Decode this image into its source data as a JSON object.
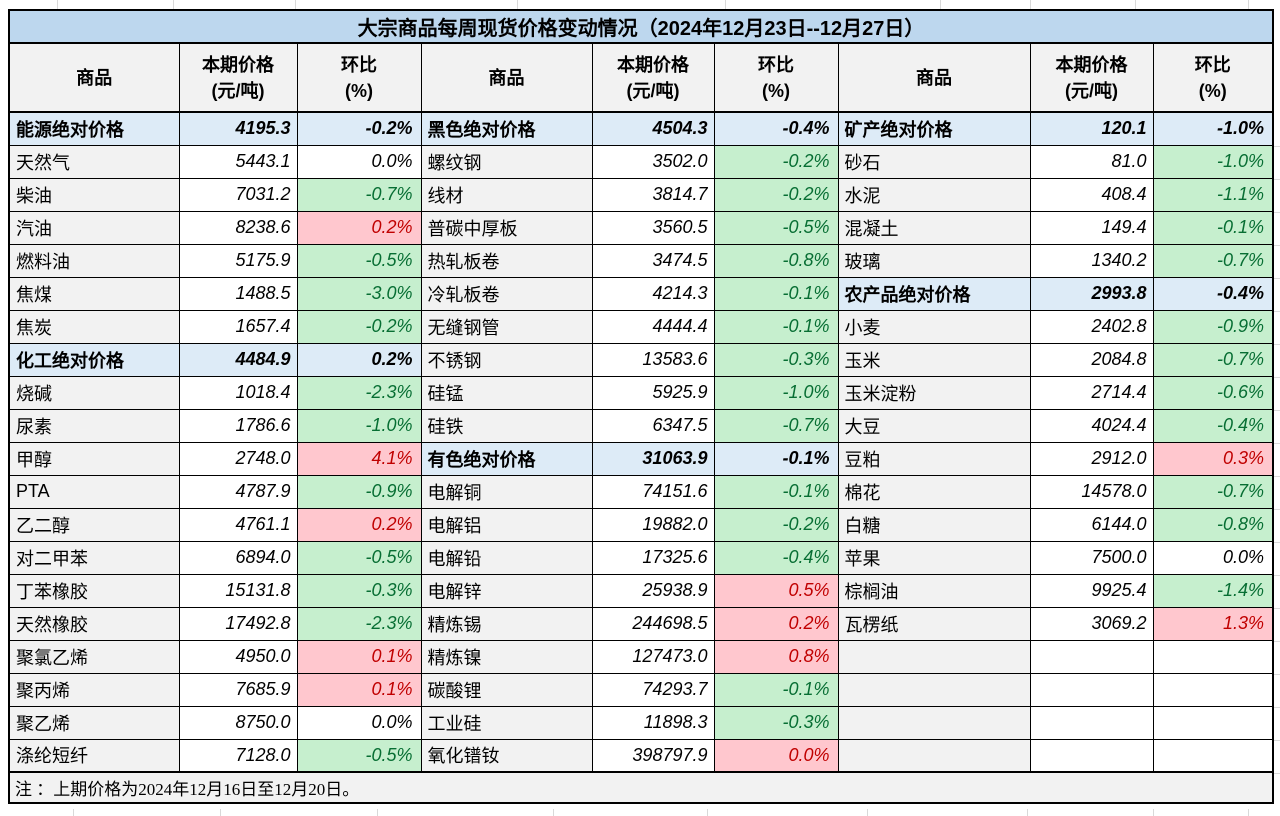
{
  "title": "大宗商品每周现货价格变动情况（2024年12月23日--12月27日）",
  "note": "注 ：上期价格为2024年12月16日至12月20日。",
  "column_headers": {
    "commodity": "商品",
    "price_line1": "本期价格",
    "price_line2": "(元/吨)",
    "pct_line1": "环比",
    "pct_line2": "(%)"
  },
  "colors": {
    "title_bg": "#BDD7EE",
    "section_bg": "#DDEBF7",
    "name_bg": "#F2F2F2",
    "header_bg": "#F2F2F2",
    "down_bg": "#C6EFCE",
    "down_text": "#076E33",
    "up_bg": "#FFC7CE",
    "up_text": "#C00000",
    "grid": "#000000",
    "faint_grid": "#D9D9D9"
  },
  "groups": [
    {
      "rows": [
        {
          "name": "能源绝对价格",
          "price": "4195.3",
          "pct": "-0.2%",
          "move": "section"
        },
        {
          "name": "天然气",
          "price": "5443.1",
          "pct": "0.0%",
          "move": "flat"
        },
        {
          "name": "柴油",
          "price": "7031.2",
          "pct": "-0.7%",
          "move": "down"
        },
        {
          "name": "汽油",
          "price": "8238.6",
          "pct": "0.2%",
          "move": "up"
        },
        {
          "name": "燃料油",
          "price": "5175.9",
          "pct": "-0.5%",
          "move": "down"
        },
        {
          "name": "焦煤",
          "price": "1488.5",
          "pct": "-3.0%",
          "move": "down"
        },
        {
          "name": "焦炭",
          "price": "1657.4",
          "pct": "-0.2%",
          "move": "down"
        },
        {
          "name": "化工绝对价格",
          "price": "4484.9",
          "pct": "0.2%",
          "move": "section"
        },
        {
          "name": "烧碱",
          "price": "1018.4",
          "pct": "-2.3%",
          "move": "down"
        },
        {
          "name": "尿素",
          "price": "1786.6",
          "pct": "-1.0%",
          "move": "down"
        },
        {
          "name": "甲醇",
          "price": "2748.0",
          "pct": "4.1%",
          "move": "up"
        },
        {
          "name": "PTA",
          "price": "4787.9",
          "pct": "-0.9%",
          "move": "down"
        },
        {
          "name": "乙二醇",
          "price": "4761.1",
          "pct": "0.2%",
          "move": "up"
        },
        {
          "name": "对二甲苯",
          "price": "6894.0",
          "pct": "-0.5%",
          "move": "down"
        },
        {
          "name": "丁苯橡胶",
          "price": "15131.8",
          "pct": "-0.3%",
          "move": "down"
        },
        {
          "name": "天然橡胶",
          "price": "17492.8",
          "pct": "-2.3%",
          "move": "down"
        },
        {
          "name": "聚氯乙烯",
          "price": "4950.0",
          "pct": "0.1%",
          "move": "up"
        },
        {
          "name": "聚丙烯",
          "price": "7685.9",
          "pct": "0.1%",
          "move": "up"
        },
        {
          "name": "聚乙烯",
          "price": "8750.0",
          "pct": "0.0%",
          "move": "flat"
        },
        {
          "name": "涤纶短纤",
          "price": "7128.0",
          "pct": "-0.5%",
          "move": "down"
        }
      ]
    },
    {
      "rows": [
        {
          "name": "黑色绝对价格",
          "price": "4504.3",
          "pct": "-0.4%",
          "move": "section"
        },
        {
          "name": "螺纹钢",
          "price": "3502.0",
          "pct": "-0.2%",
          "move": "down"
        },
        {
          "name": "线材",
          "price": "3814.7",
          "pct": "-0.2%",
          "move": "down"
        },
        {
          "name": "普碳中厚板",
          "price": "3560.5",
          "pct": "-0.5%",
          "move": "down"
        },
        {
          "name": "热轧板卷",
          "price": "3474.5",
          "pct": "-0.8%",
          "move": "down"
        },
        {
          "name": "冷轧板卷",
          "price": "4214.3",
          "pct": "-0.1%",
          "move": "down"
        },
        {
          "name": "无缝钢管",
          "price": "4444.4",
          "pct": "-0.1%",
          "move": "down"
        },
        {
          "name": "不锈钢",
          "price": "13583.6",
          "pct": "-0.3%",
          "move": "down"
        },
        {
          "name": "硅锰",
          "price": "5925.9",
          "pct": "-1.0%",
          "move": "down"
        },
        {
          "name": "硅铁",
          "price": "6347.5",
          "pct": "-0.7%",
          "move": "down"
        },
        {
          "name": "有色绝对价格",
          "price": "31063.9",
          "pct": "-0.1%",
          "move": "section"
        },
        {
          "name": "电解铜",
          "price": "74151.6",
          "pct": "-0.1%",
          "move": "down"
        },
        {
          "name": "电解铝",
          "price": "19882.0",
          "pct": "-0.2%",
          "move": "down"
        },
        {
          "name": "电解铅",
          "price": "17325.6",
          "pct": "-0.4%",
          "move": "down"
        },
        {
          "name": "电解锌",
          "price": "25938.9",
          "pct": "0.5%",
          "move": "up"
        },
        {
          "name": "精炼锡",
          "price": "244698.5",
          "pct": "0.2%",
          "move": "up"
        },
        {
          "name": "精炼镍",
          "price": "127473.0",
          "pct": "0.8%",
          "move": "up"
        },
        {
          "name": "碳酸锂",
          "price": "74293.7",
          "pct": "-0.1%",
          "move": "down"
        },
        {
          "name": "工业硅",
          "price": "11898.3",
          "pct": "-0.3%",
          "move": "down"
        },
        {
          "name": "氧化镨钕",
          "price": "398797.9",
          "pct": "0.0%",
          "move": "up"
        }
      ]
    },
    {
      "rows": [
        {
          "name": "矿产绝对价格",
          "price": "120.1",
          "pct": "-1.0%",
          "move": "section"
        },
        {
          "name": "砂石",
          "price": "81.0",
          "pct": "-1.0%",
          "move": "down"
        },
        {
          "name": "水泥",
          "price": "408.4",
          "pct": "-1.1%",
          "move": "down"
        },
        {
          "name": "混凝土",
          "price": "149.4",
          "pct": "-0.1%",
          "move": "down"
        },
        {
          "name": "玻璃",
          "price": "1340.2",
          "pct": "-0.7%",
          "move": "down"
        },
        {
          "name": "农产品绝对价格",
          "price": "2993.8",
          "pct": "-0.4%",
          "move": "section"
        },
        {
          "name": "小麦",
          "price": "2402.8",
          "pct": "-0.9%",
          "move": "down"
        },
        {
          "name": "玉米",
          "price": "2084.8",
          "pct": "-0.7%",
          "move": "down"
        },
        {
          "name": "玉米淀粉",
          "price": "2714.4",
          "pct": "-0.6%",
          "move": "down"
        },
        {
          "name": "大豆",
          "price": "4024.4",
          "pct": "-0.4%",
          "move": "down"
        },
        {
          "name": "豆粕",
          "price": "2912.0",
          "pct": "0.3%",
          "move": "up"
        },
        {
          "name": "棉花",
          "price": "14578.0",
          "pct": "-0.7%",
          "move": "down"
        },
        {
          "name": "白糖",
          "price": "6144.0",
          "pct": "-0.8%",
          "move": "down"
        },
        {
          "name": "苹果",
          "price": "7500.0",
          "pct": "0.0%",
          "move": "flat"
        },
        {
          "name": "棕榈油",
          "price": "9925.4",
          "pct": "-1.4%",
          "move": "down"
        },
        {
          "name": "瓦楞纸",
          "price": "3069.2",
          "pct": "1.3%",
          "move": "up"
        },
        {
          "name": "",
          "price": "",
          "pct": "",
          "move": "empty"
        },
        {
          "name": "",
          "price": "",
          "pct": "",
          "move": "empty"
        },
        {
          "name": "",
          "price": "",
          "pct": "",
          "move": "empty"
        },
        {
          "name": "",
          "price": "",
          "pct": "",
          "move": "empty"
        }
      ]
    }
  ]
}
